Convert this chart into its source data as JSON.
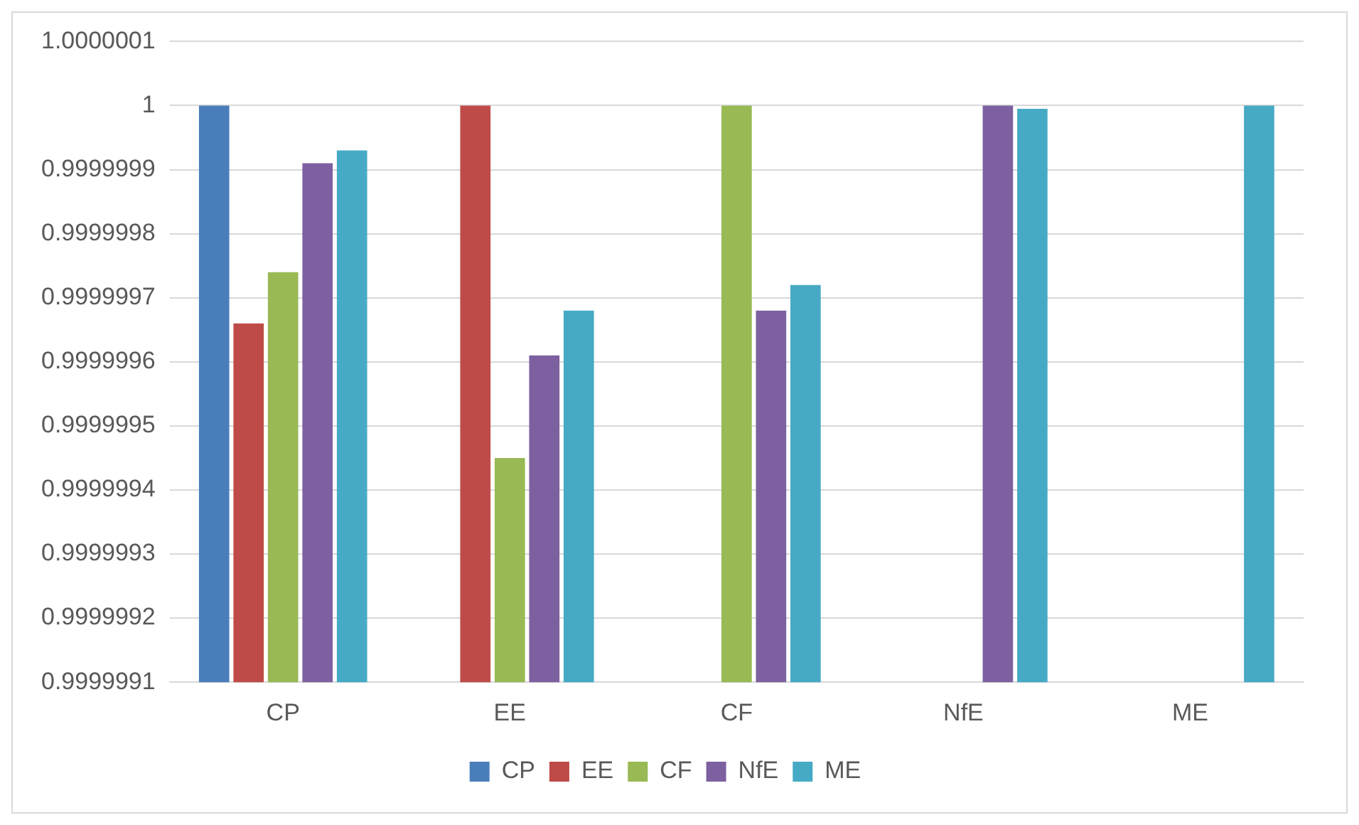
{
  "chart_data": {
    "type": "bar",
    "categories": [
      "CP",
      "EE",
      "CF",
      "NfE",
      "ME"
    ],
    "series": [
      {
        "name": "CP",
        "color": "#4a7ebb",
        "values": [
          1,
          null,
          null,
          null,
          null
        ]
      },
      {
        "name": "EE",
        "color": "#be4b48",
        "values": [
          0.99999966,
          1,
          null,
          null,
          null
        ]
      },
      {
        "name": "CF",
        "color": "#98b954",
        "values": [
          0.99999974,
          0.99999945,
          1,
          null,
          null
        ]
      },
      {
        "name": "NfE",
        "color": "#7d60a0",
        "values": [
          0.99999991,
          0.99999961,
          0.99999968,
          1,
          null
        ]
      },
      {
        "name": "ME",
        "color": "#46aac5",
        "values": [
          0.99999993,
          0.99999968,
          0.99999972,
          0.999999995,
          1
        ]
      }
    ],
    "ylim": [
      0.9999991,
      1.0000001
    ],
    "yticks": [
      0.9999991,
      0.9999992,
      0.9999993,
      0.9999994,
      0.9999995,
      0.9999996,
      0.9999997,
      0.9999998,
      0.9999999,
      1,
      1.0000001
    ],
    "grid": "y",
    "legend": "bottom"
  }
}
